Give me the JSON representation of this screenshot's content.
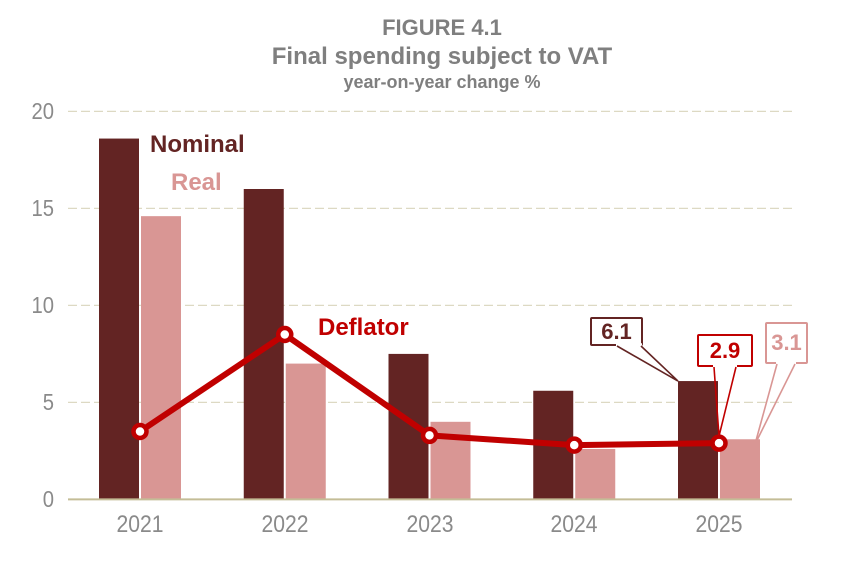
{
  "title": {
    "figure": "FIGURE 4.1",
    "main": "Final spending subject to VAT",
    "subtitle": "year-on-year change %"
  },
  "chart_data": {
    "type": "bar",
    "title": "FIGURE 4.1 Final spending subject to VAT",
    "subtitle": "year-on-year change %",
    "categories": [
      "2021",
      "2022",
      "2023",
      "2024",
      "2025"
    ],
    "series": [
      {
        "name": "Nominal",
        "type": "bar",
        "color": "#632423",
        "values": [
          18.6,
          16.0,
          7.5,
          5.6,
          6.1
        ]
      },
      {
        "name": "Real",
        "type": "bar",
        "color": "#D99694",
        "values": [
          14.6,
          7.0,
          4.0,
          2.6,
          3.1
        ]
      },
      {
        "name": "Deflator",
        "type": "line",
        "color": "#C00000",
        "marker": "circle-white-fill",
        "values": [
          3.5,
          8.5,
          3.3,
          2.8,
          2.9
        ]
      }
    ],
    "xlabel": "",
    "ylabel": "",
    "ylim": [
      0,
      20
    ],
    "yticks": [
      0,
      5,
      10,
      15,
      20
    ],
    "grid": {
      "horizontal": true,
      "style": "dashed",
      "color": "#DDD9C3"
    },
    "axis_line_color": "#C4BD97",
    "tick_label_color": "#8A8A8A",
    "legend_position": "inline-labels",
    "series_labels": [
      {
        "text": "Nominal",
        "color": "#632423"
      },
      {
        "text": "Real",
        "color": "#D99694"
      },
      {
        "text": "Deflator",
        "color": "#C00000"
      }
    ],
    "annotations": [
      {
        "text": "6.1",
        "series": "Nominal",
        "category": "2025",
        "value": 6.1,
        "color": "#632423"
      },
      {
        "text": "2.9",
        "series": "Deflator",
        "category": "2025",
        "value": 2.9,
        "color": "#C00000"
      },
      {
        "text": "3.1",
        "series": "Real",
        "category": "2025",
        "value": 3.1,
        "color": "#D99694"
      }
    ]
  }
}
